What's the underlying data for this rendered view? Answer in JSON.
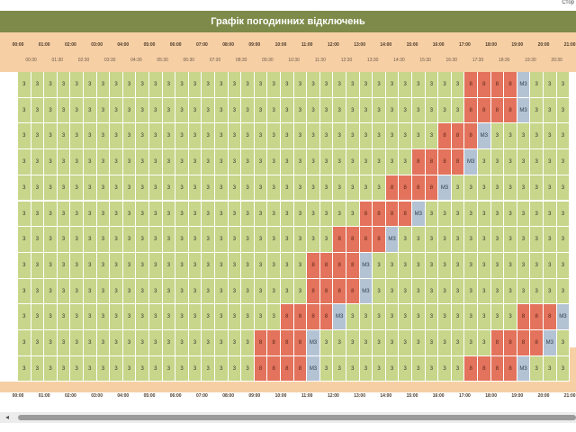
{
  "corner_text": "Стор",
  "title": "Графік погодинних відключень",
  "hours": [
    "00:00",
    "01:00",
    "02:00",
    "03:00",
    "04:00",
    "05:00",
    "06:00",
    "07:00",
    "08:00",
    "09:00",
    "10:00",
    "11:00",
    "12:00",
    "13:00",
    "14:00",
    "15:00",
    "16:00",
    "17:00",
    "18:00",
    "19:00",
    "20:00",
    "21:00"
  ],
  "half_hours": [
    "00:30",
    "01:30",
    "02:30",
    "03:30",
    "04:30",
    "05:30",
    "06:30",
    "07:30",
    "08:30",
    "09:30",
    "10:30",
    "11:30",
    "12:30",
    "13:30",
    "14:30",
    "15:30",
    "16:30",
    "17:30",
    "18:30",
    "19:30",
    "20:30",
    "21:30"
  ],
  "status_codes": {
    "on": "3",
    "off": "8",
    "maybe": "М3"
  },
  "status_colors": {
    "on": "#c7d68a",
    "off": "#e3735c",
    "maybe": "#b4c3d4",
    "header": "#f7cfa5",
    "title_bar": "#7d8a49"
  },
  "rows": [
    "333333333333333333333333333333333388889",
    "333333333333333333333333333333333388889",
    "333333333333333333333333333333338889333",
    "333333333333333333333333333333888893333",
    "333333333333333333333333333388889333333",
    "333333333333333333333333338888933333333",
    "333333333333333333333333888893333333333",
    "333333333333333333333388889333333333333",
    "333333333333333333333388889333333333333333888",
    "333333333333333333338888933333333333338889",
    "333333333333333333888893333333333333888893",
    "333333333333333333888893333333333388889333"
  ],
  "scroll": {
    "left_arrow": "◂"
  }
}
